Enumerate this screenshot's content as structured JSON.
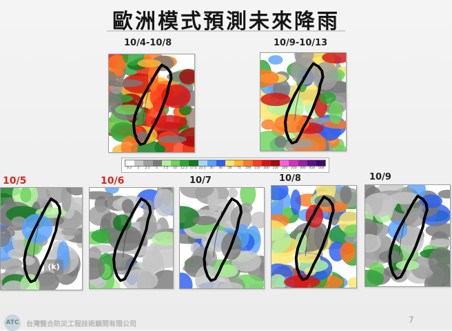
{
  "title": "歐洲模式預測未來降雨",
  "top_maps": [
    {
      "date": "10/4-10/8",
      "variant": "heavy"
    },
    {
      "date": "10/9-10/13",
      "variant": "medium"
    }
  ],
  "bottom_maps": [
    {
      "date": "10/5",
      "date_color": "#d4271e",
      "variant": "light"
    },
    {
      "date": "10/6",
      "date_color": "#d4271e",
      "variant": "light"
    },
    {
      "date": "10/7",
      "date_color": "#222222",
      "variant": "light"
    },
    {
      "date": "10/8",
      "date_color": "#222222",
      "variant": "medium"
    },
    {
      "date": "10/9",
      "date_color": "#222222",
      "variant": "light"
    }
  ],
  "color_scale": {
    "ticks": [
      "0.2",
      "1",
      "2.5",
      "5",
      "7.5",
      "10",
      "12.5",
      "17.5",
      "22.5",
      "30",
      "40",
      "50",
      "75",
      "100",
      "150",
      "200",
      "250",
      "300",
      "350",
      "400",
      "450",
      "500"
    ],
    "colors": [
      "#ffffff",
      "#c6c6c6",
      "#9e9e9e",
      "#7a7a7a",
      "#b3f0a0",
      "#6cd35c",
      "#2ea536",
      "#117a1f",
      "#a7d2ff",
      "#5aa2ff",
      "#2c5ff2",
      "#ffe66b",
      "#ffb733",
      "#ff7a22",
      "#ff3c1c",
      "#d41515",
      "#a30a0a",
      "#ff60d9",
      "#d52fc2",
      "#9a1fa7",
      "#5c118a",
      "#3f0a6b"
    ]
  },
  "badge_text": "(k)",
  "logo_text": "ATC",
  "footer_company": "台灣整合防災工程技術顧問有限公司",
  "page_number": "7"
}
